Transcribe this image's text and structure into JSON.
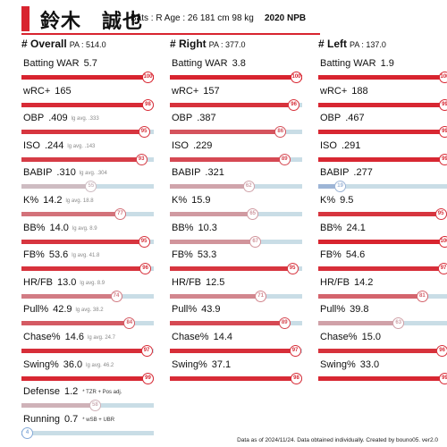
{
  "header": {
    "name": "鈴木　誠也",
    "info": "Bats : R   Age : 26   181 cm 98 kg",
    "season": "2020 NPB"
  },
  "footer": "Data as of 2024/11/24. Data obtained individually. Created by bouno05.  ver2.0",
  "colors": {
    "accent": "#d8242f",
    "track": "#c9dde6",
    "low": "#7fa7d8"
  },
  "chart_data": {
    "type": "bar",
    "title": "鈴木　誠也",
    "xlim": [
      0,
      100
    ],
    "panels": [
      {
        "label": "# Overall",
        "pa": "PA : 514.0",
        "stats": [
          {
            "name": "Batting WAR",
            "value": "5.7",
            "lg": "",
            "note": "",
            "percentile": 100
          },
          {
            "name": "wRC+",
            "value": "165",
            "lg": "",
            "note": "",
            "percentile": 98
          },
          {
            "name": "OBP",
            "value": ".409",
            "lg": "lg avg. .333",
            "note": "",
            "percentile": 95
          },
          {
            "name": "ISO",
            "value": ".244",
            "lg": "lg avg. .143",
            "note": "",
            "percentile": 93
          },
          {
            "name": "BABIP",
            "value": ".310",
            "lg": "lg avg. .304",
            "note": "",
            "percentile": 55
          },
          {
            "name": "K%",
            "value": "14.2",
            "lg": "lg avg. 18.8",
            "note": "",
            "percentile": 77
          },
          {
            "name": "BB%",
            "value": "14.0",
            "lg": "lg avg. 8.9",
            "note": "",
            "percentile": 95
          },
          {
            "name": "FB%",
            "value": "53.6",
            "lg": "lg avg. 41.8",
            "note": "",
            "percentile": 96
          },
          {
            "name": "HR/FB",
            "value": "13.0",
            "lg": "lg avg. 8.9",
            "note": "",
            "percentile": 74
          },
          {
            "name": "Pull%",
            "value": "42.9",
            "lg": "lg avg. 38.2",
            "note": "",
            "percentile": 84
          },
          {
            "name": "Chase%",
            "value": "14.6",
            "lg": "lg avg. 24.7",
            "note": "",
            "percentile": 97
          },
          {
            "name": "Swing%",
            "value": "36.0",
            "lg": "lg avg. 46.2",
            "note": "",
            "percentile": 99
          },
          {
            "name": "Defense",
            "value": "1.2",
            "lg": "",
            "note": "* TZR + Pos adj.",
            "percentile": 58
          },
          {
            "name": "Running",
            "value": "0.7",
            "lg": "",
            "note": "* wSB + UBR",
            "percentile": 4
          }
        ]
      },
      {
        "label": "# Right",
        "pa": "PA : 377.0",
        "stats": [
          {
            "name": "Batting WAR",
            "value": "3.8",
            "percentile": 100
          },
          {
            "name": "wRC+",
            "value": "157",
            "percentile": 96
          },
          {
            "name": "OBP",
            "value": ".387",
            "percentile": 86
          },
          {
            "name": "ISO",
            "value": ".229",
            "percentile": 89
          },
          {
            "name": "BABIP",
            "value": ".321",
            "percentile": 62
          },
          {
            "name": "K%",
            "value": "15.9",
            "percentile": 65
          },
          {
            "name": "BB%",
            "value": "10.3",
            "percentile": 67
          },
          {
            "name": "FB%",
            "value": "53.3",
            "percentile": 95
          },
          {
            "name": "HR/FB",
            "value": "12.5",
            "percentile": 71
          },
          {
            "name": "Pull%",
            "value": "43.9",
            "percentile": 89
          },
          {
            "name": "Chase%",
            "value": "14.4",
            "percentile": 97
          },
          {
            "name": "Swing%",
            "value": "37.1",
            "percentile": 98
          }
        ]
      },
      {
        "label": "# Left",
        "pa": "PA : 137.0",
        "stats": [
          {
            "name": "Batting WAR",
            "value": "1.9",
            "percentile": 100
          },
          {
            "name": "wRC+",
            "value": "188",
            "percentile": 99
          },
          {
            "name": "OBP",
            "value": ".467",
            "percentile": 99
          },
          {
            "name": "ISO",
            "value": ".291",
            "percentile": 99
          },
          {
            "name": "BABIP",
            "value": ".277",
            "percentile": 19
          },
          {
            "name": "K%",
            "value": "9.5",
            "percentile": 95
          },
          {
            "name": "BB%",
            "value": "24.1",
            "percentile": 100
          },
          {
            "name": "FB%",
            "value": "54.6",
            "percentile": 97
          },
          {
            "name": "HR/FB",
            "value": "14.2",
            "percentile": 81
          },
          {
            "name": "Pull%",
            "value": "39.8",
            "percentile": 63
          },
          {
            "name": "Chase%",
            "value": "15.0",
            "percentile": 96
          },
          {
            "name": "Swing%",
            "value": "33.0",
            "percentile": 99
          }
        ]
      }
    ]
  }
}
